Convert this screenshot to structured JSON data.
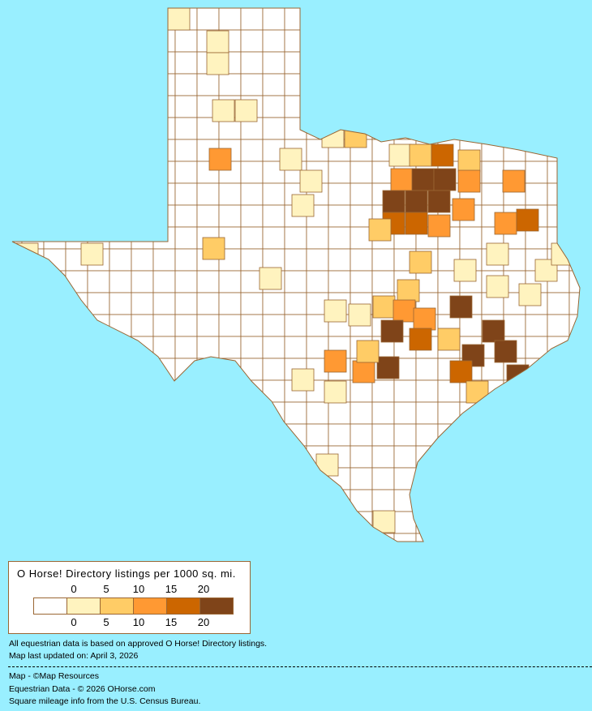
{
  "legend": {
    "title": "O Horse! Directory listings per 1000 sq. mi.",
    "ticks": [
      "0",
      "5",
      "10",
      "15",
      "20"
    ],
    "colors": [
      "#ffffff",
      "#fff3bf",
      "#ffcc66",
      "#ff9933",
      "#cc6600",
      "#7f4419"
    ]
  },
  "map": {
    "background": "#99efff",
    "border_color": "#9a6633"
  },
  "notes": {
    "line1": "All equestrian data is based on approved O Horse! Directory listings.",
    "line2": "Map last updated on: April 3, 2026",
    "credit1": "Map - ©Map Resources",
    "credit2": "Equestrian Data - © 2026 OHorse.com",
    "credit3": "Square mileage info from the U.S. Census Bureau."
  }
}
